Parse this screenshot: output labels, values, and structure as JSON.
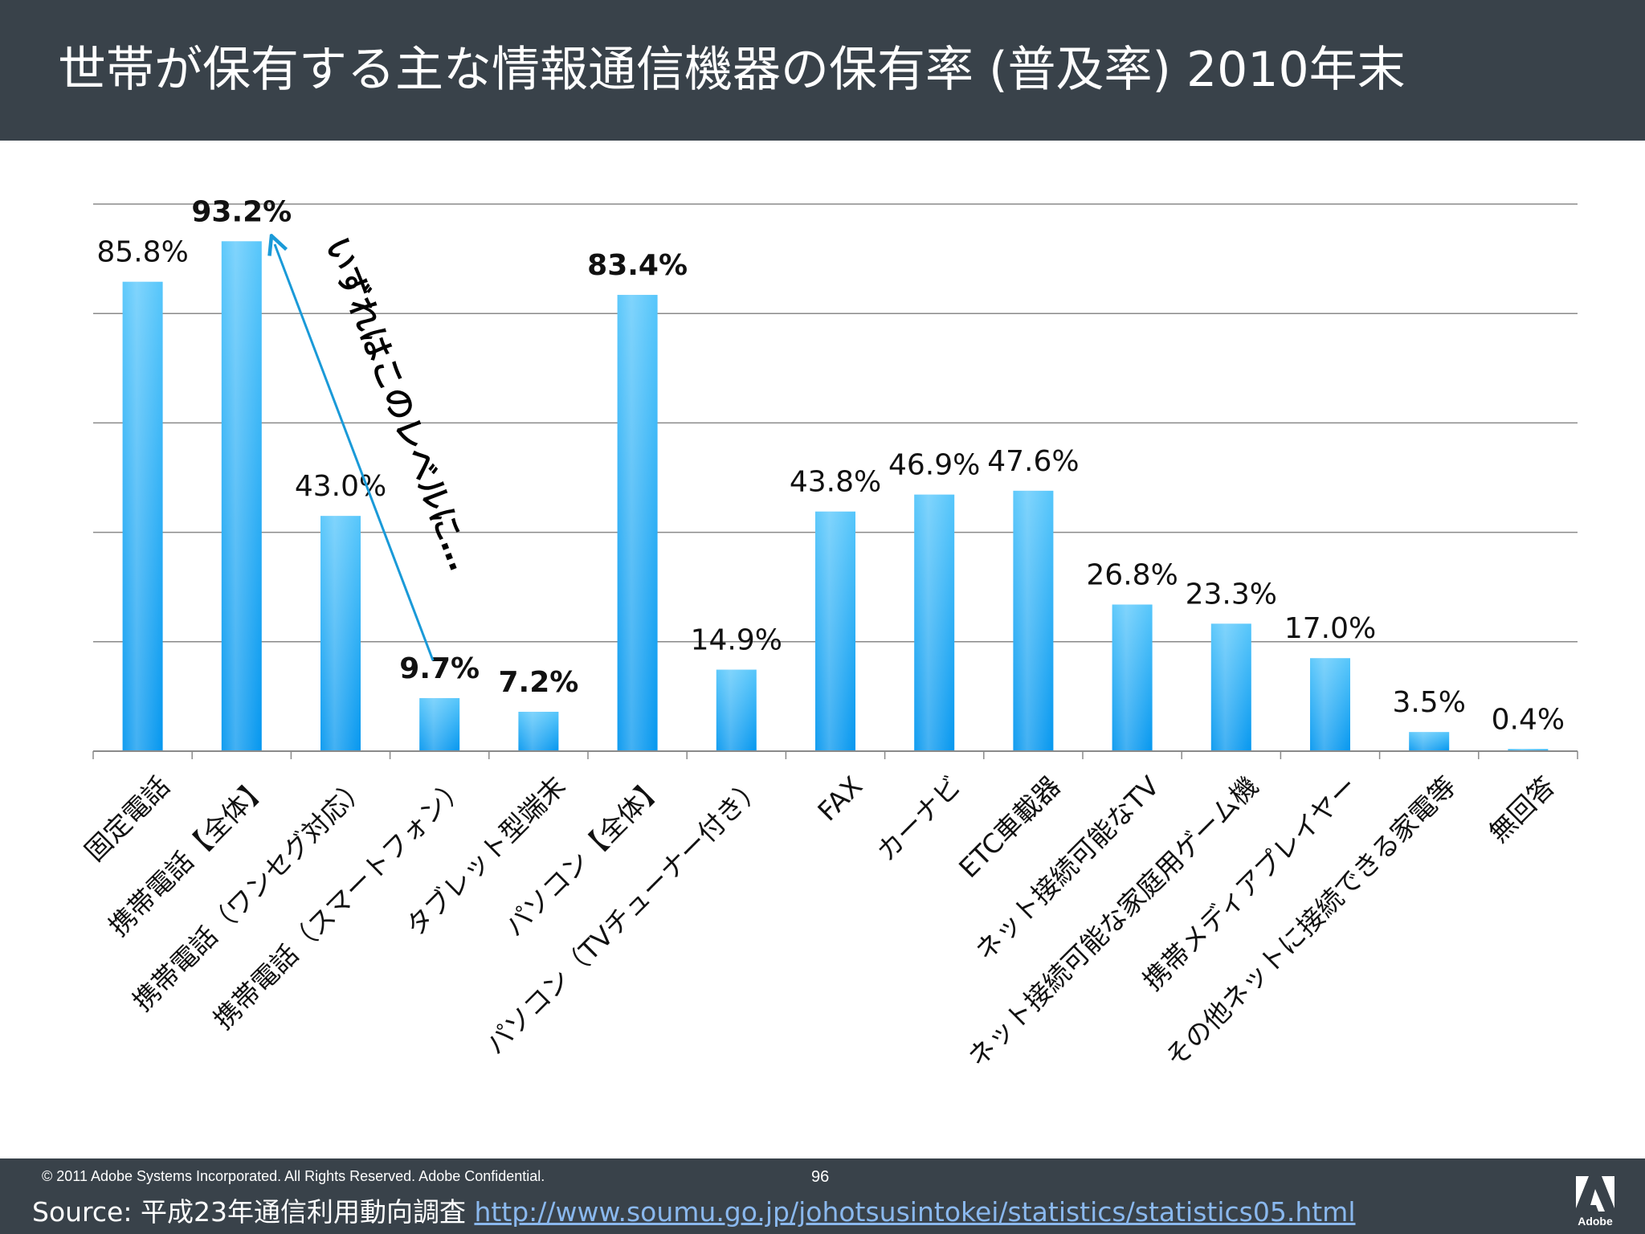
{
  "header": {
    "title": "世帯が保有する主な情報通信機器の保有率 (普及率) 2010年末"
  },
  "chart_data": {
    "type": "bar",
    "title": "世帯が保有する主な情報通信機器の保有率 (普及率) 2010年末",
    "xlabel": "",
    "ylabel": "",
    "ylim": [
      0,
      100
    ],
    "grid": true,
    "categories": [
      "固定電話",
      "携帯電話【全体】",
      "携帯電話（ワンセグ対応）",
      "携帯電話（スマートフォン）",
      "タブレット型端末",
      "パソコン【全体】",
      "パソコン（TVチューナー付き）",
      "FAX",
      "カーナビ",
      "ETC車載器",
      "ネット接続可能なTV",
      "ネット接続可能な家庭用ゲーム機",
      "携帯メディアプレイヤー",
      "その他ネットに接続できる家電等",
      "無回答"
    ],
    "values": [
      85.8,
      93.2,
      43.0,
      9.7,
      7.2,
      83.4,
      14.9,
      43.8,
      46.9,
      47.6,
      26.8,
      23.3,
      17.0,
      3.5,
      0.4
    ],
    "value_labels": [
      "85.8%",
      "93.2%",
      "43.0%",
      "9.7%",
      "7.2%",
      "83.4%",
      "14.9%",
      "43.8%",
      "46.9%",
      "47.6%",
      "26.8%",
      "23.3%",
      "17.0%",
      "3.5%",
      "0.4%"
    ],
    "bold_labels": [
      false,
      true,
      false,
      true,
      true,
      true,
      false,
      false,
      false,
      false,
      false,
      false,
      false,
      false,
      false
    ],
    "annotation": "いずれはこのレベルに…",
    "colors": {
      "bar_top": "#56c6fb",
      "bar_bottom": "#0597ef",
      "grid": "#8a8a8a",
      "arrow": "#1a9ad8"
    }
  },
  "footer": {
    "copyright": "© 2011 Adobe Systems Incorporated.  All Rights Reserved.  Adobe Confidential.",
    "page_number": "96",
    "source_label": "Source: 平成23年通信利用動向調査 ",
    "source_url": "http://www.soumu.go.jp/johotsusintokei/statistics/statistics05.html",
    "logo_text": "Adobe"
  }
}
